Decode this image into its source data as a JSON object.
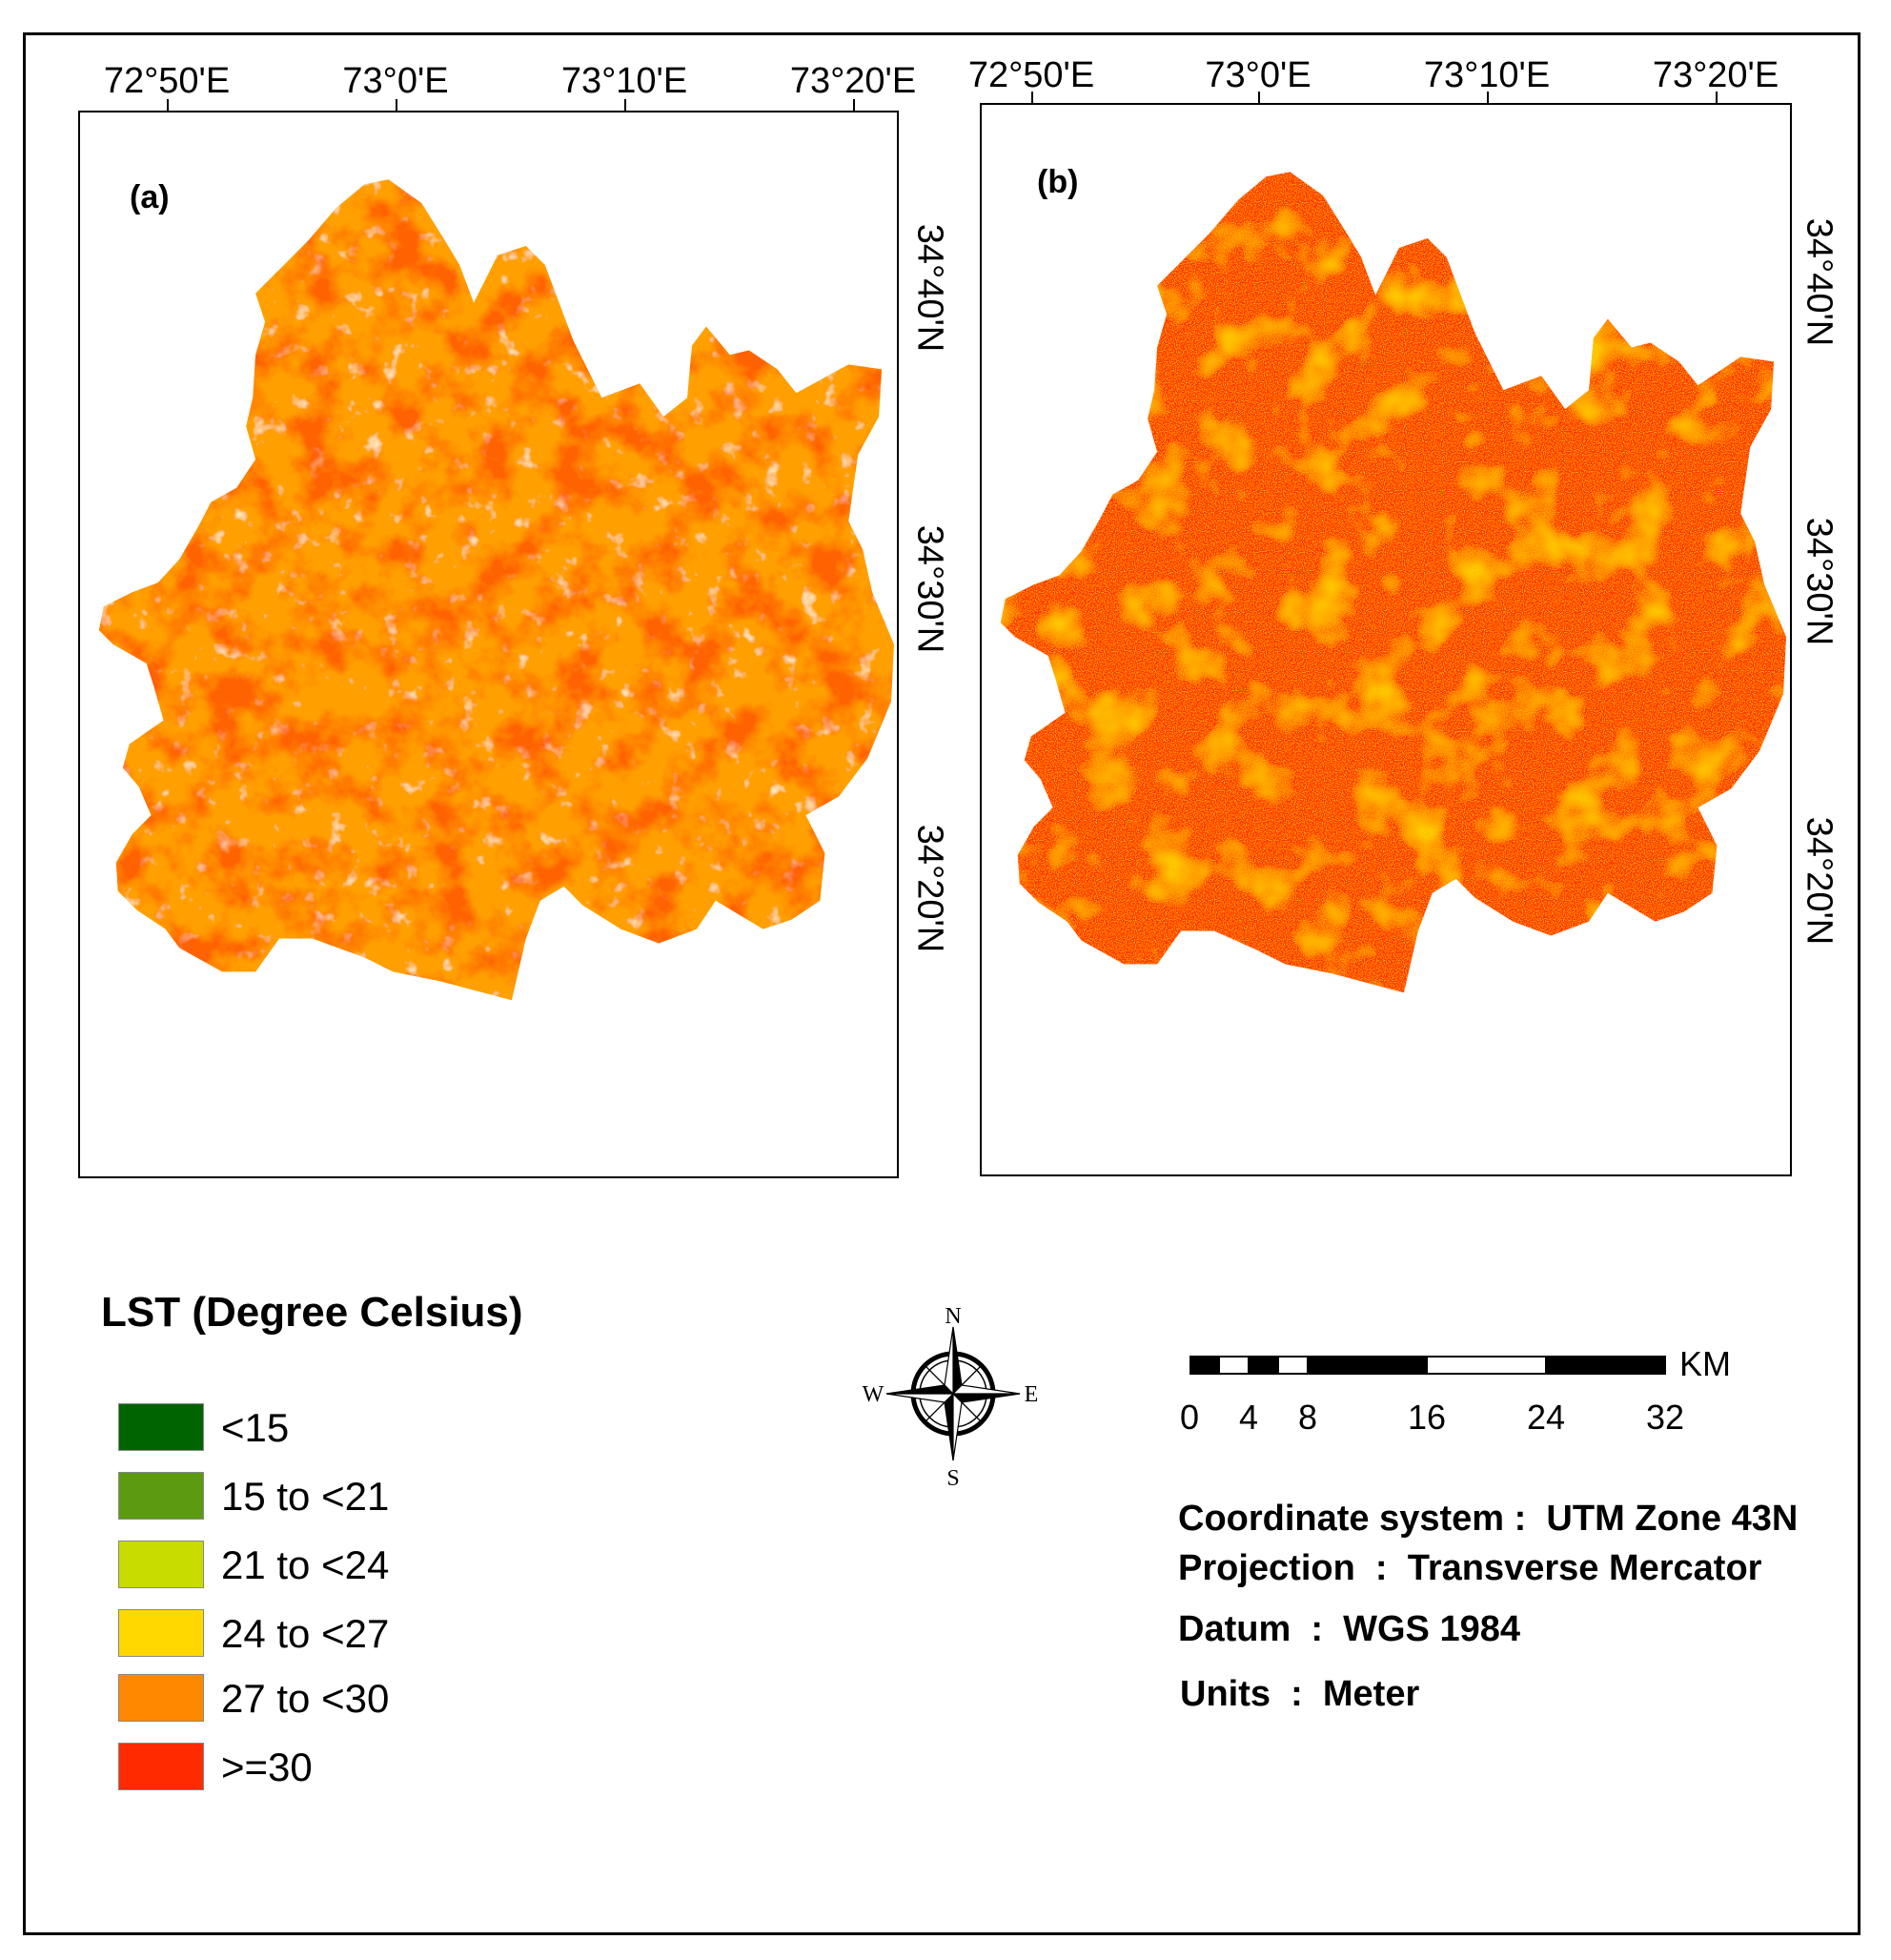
{
  "maps": {
    "a": {
      "label": "(a)",
      "lon_labels": [
        "72°50'E",
        "73°0'E",
        "73°10'E",
        "73°20'E"
      ],
      "lat_labels": [
        "34°40'N",
        "34°30'N",
        "34°20'N"
      ],
      "dominant_classes": [
        "27 to <30",
        ">=30",
        "24 to <27"
      ]
    },
    "b": {
      "label": "(b)",
      "lon_labels": [
        "72°50'E",
        "73°0'E",
        "73°10'E",
        "73°20'E"
      ],
      "lat_labels": [
        "34°40'N",
        "34°30'N",
        "34°20'N"
      ],
      "dominant_classes": [
        ">=30",
        "27 to <30"
      ]
    }
  },
  "legend": {
    "title": "LST (Degree Celsius)",
    "items": [
      {
        "label": "<15",
        "color": "#006400"
      },
      {
        "label": "15 to <21",
        "color": "#5c9a10"
      },
      {
        "label": "21 to <24",
        "color": "#c8dc00"
      },
      {
        "label": "24 to <27",
        "color": "#ffd800"
      },
      {
        "label": "27 to <30",
        "color": "#ff8800"
      },
      {
        "label": ">=30",
        "color": "#ff2a00"
      }
    ]
  },
  "compass": {
    "n": "N",
    "s": "S",
    "e": "E",
    "w": "W"
  },
  "scalebar": {
    "unit": "KM",
    "ticks": [
      "0",
      "4",
      "8",
      "16",
      "24",
      "32"
    ],
    "values_km": [
      0,
      2,
      4,
      6,
      8,
      16,
      24,
      32
    ]
  },
  "metadata": [
    {
      "key": "Coordinate system",
      "sep": " :  ",
      "value": "UTM Zone 43N"
    },
    {
      "key": "Projection",
      "sep": "  :  ",
      "value": "Transverse Mercator"
    },
    {
      "key": "Datum",
      "sep": "  :  ",
      "value": "WGS 1984"
    },
    {
      "key": "Units",
      "sep": "  :  ",
      "value": "Meter"
    }
  ]
}
